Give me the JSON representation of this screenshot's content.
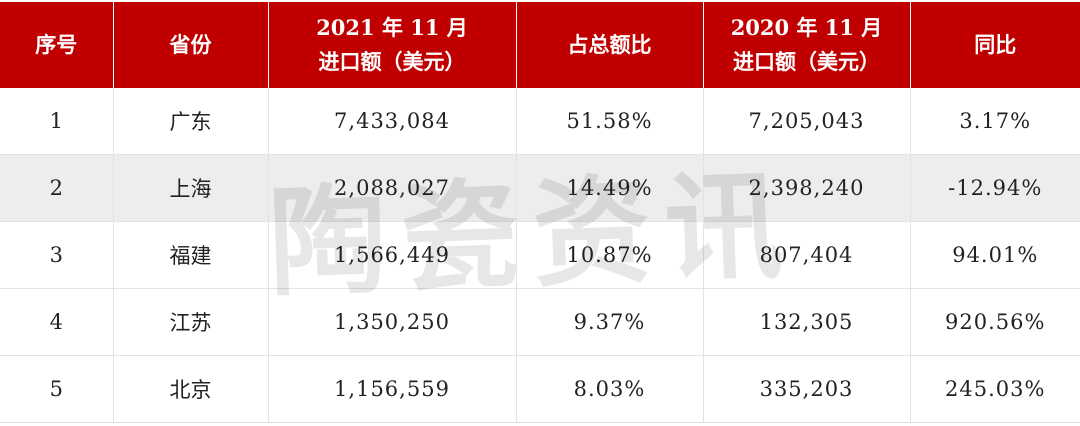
{
  "headers": {
    "seq": "序号",
    "province": "省份",
    "import2021_line1": "2021 年 11 月",
    "import2021_line2": "进口额（美元）",
    "share": "占总额比",
    "import2020_line1": "2020 年 11 月",
    "import2020_line2": "进口额（美元）",
    "yoy": "同比"
  },
  "rows": [
    {
      "seq": "1",
      "province": "广东",
      "import2021": "7,433,084",
      "share": "51.58%",
      "import2020": "7,205,043",
      "yoy": "3.17%"
    },
    {
      "seq": "2",
      "province": "上海",
      "import2021": "2,088,027",
      "share": "14.49%",
      "import2020": "2,398,240",
      "yoy": "-12.94%"
    },
    {
      "seq": "3",
      "province": "福建",
      "import2021": "1,566,449",
      "share": "10.87%",
      "import2020": "807,404",
      "yoy": "94.01%"
    },
    {
      "seq": "4",
      "province": "江苏",
      "import2021": "1,350,250",
      "share": "9.37%",
      "import2020": "132,305",
      "yoy": "920.56%"
    },
    {
      "seq": "5",
      "province": "北京",
      "import2021": "1,156,559",
      "share": "8.03%",
      "import2020": "335,203",
      "yoy": "245.03%"
    }
  ],
  "watermark": "陶瓷资讯",
  "colors": {
    "header_bg": "#c00000",
    "header_text": "#ffffff",
    "stripe": "#ededed"
  }
}
